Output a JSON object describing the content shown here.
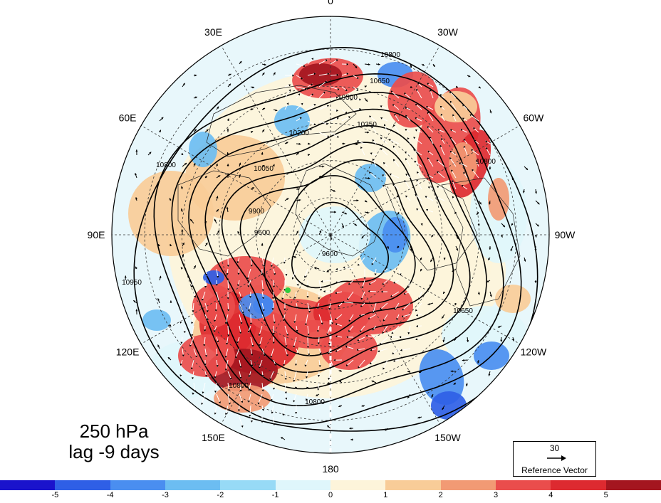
{
  "map": {
    "longitude_labels": [
      {
        "text": "0",
        "angle": 0
      },
      {
        "text": "30W",
        "angle": 30
      },
      {
        "text": "60W",
        "angle": 60
      },
      {
        "text": "90W",
        "angle": 90
      },
      {
        "text": "120W",
        "angle": 120
      },
      {
        "text": "150W",
        "angle": 150
      },
      {
        "text": "180",
        "angle": 180
      },
      {
        "text": "150E",
        "angle": 210
      },
      {
        "text": "120E",
        "angle": 240
      },
      {
        "text": "90E",
        "angle": 270
      },
      {
        "text": "60E",
        "angle": 300
      },
      {
        "text": "30E",
        "angle": 330
      }
    ],
    "contour_labels": [
      "10800",
      "10650",
      "10500",
      "10350",
      "10200",
      "10050",
      "9900",
      "9600",
      "10950"
    ],
    "level_line1": "250 hPa",
    "level_line2": "lag -9 days"
  },
  "reference_vector": {
    "value": "30",
    "label": "Reference Vector"
  },
  "colorbar": {
    "ticks": [
      "-5",
      "-4",
      "-3",
      "-2",
      "-1",
      "0",
      "1",
      "2",
      "3",
      "4",
      "5"
    ],
    "colors": [
      "#1a13cc",
      "#2f5fe6",
      "#4a8ef0",
      "#6cbdf2",
      "#97daf6",
      "#dff6fb",
      "#fdf4da",
      "#f8cc98",
      "#f29a74",
      "#ea4d4c",
      "#dd2a30",
      "#a4161f"
    ]
  }
}
